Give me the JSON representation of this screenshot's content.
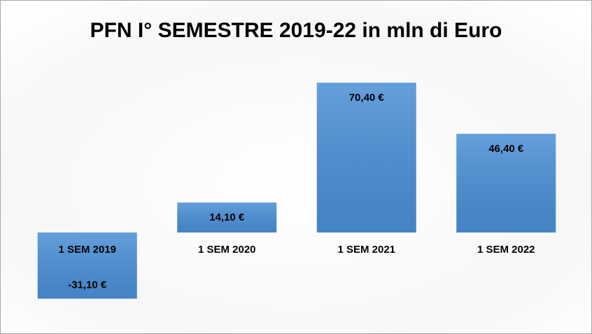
{
  "chart_data": {
    "type": "bar",
    "title": "PFN I° SEMESTRE 2019-22 in mln di Euro",
    "categories": [
      "1 SEM 2019",
      "1 SEM 2020",
      "1 SEM 2021",
      "1 SEM 2022"
    ],
    "values": [
      -31.1,
      14.1,
      70.4,
      46.4
    ],
    "value_labels": [
      "-31,10 €",
      "14,10 €",
      "70,40 €",
      "46,40 €"
    ],
    "color": "#4a8fd6",
    "ylim": [
      -40,
      80
    ]
  }
}
